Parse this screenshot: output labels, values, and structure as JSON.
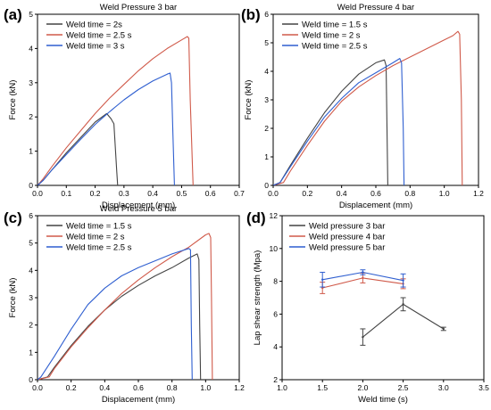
{
  "chart_data": [
    {
      "panel_label": "(a)",
      "type": "line",
      "title": "Weld Pressure 3 bar",
      "xlabel": "Displacement (mm)",
      "ylabel": "Force (kN)",
      "xlim": [
        0,
        0.7
      ],
      "ylim": [
        0,
        5
      ],
      "xticks": [
        "0.0",
        "0.1",
        "0.2",
        "0.3",
        "0.4",
        "0.5",
        "0.6",
        "0.7"
      ],
      "yticks": [
        "0",
        "1",
        "2",
        "3",
        "4",
        "5"
      ],
      "legend_position": "top-left",
      "grid": false,
      "series": [
        {
          "name": "Weld time = 2s",
          "color": "#444444",
          "x": [
            0,
            0.02,
            0.05,
            0.1,
            0.15,
            0.2,
            0.24,
            0.255,
            0.265,
            0.275,
            0.278
          ],
          "y": [
            0,
            0.15,
            0.45,
            0.95,
            1.4,
            1.85,
            2.1,
            1.95,
            1.8,
            0.4,
            0
          ]
        },
        {
          "name": "Weld time = 2.5 s",
          "color": "#d05a4a",
          "x": [
            0,
            0.02,
            0.05,
            0.1,
            0.15,
            0.2,
            0.25,
            0.3,
            0.35,
            0.4,
            0.45,
            0.5,
            0.52,
            0.525,
            0.53,
            0.54
          ],
          "y": [
            0,
            0.2,
            0.55,
            1.1,
            1.6,
            2.1,
            2.55,
            2.95,
            3.35,
            3.7,
            4.0,
            4.25,
            4.35,
            4.3,
            2.5,
            0
          ]
        },
        {
          "name": "Weld time = 3 s",
          "color": "#2f5fd0",
          "x": [
            0,
            0.02,
            0.05,
            0.1,
            0.15,
            0.2,
            0.25,
            0.3,
            0.35,
            0.4,
            0.45,
            0.46,
            0.465,
            0.47,
            0.475
          ],
          "y": [
            0,
            0.15,
            0.45,
            0.9,
            1.35,
            1.78,
            2.15,
            2.5,
            2.8,
            3.05,
            3.25,
            3.28,
            3.0,
            1.5,
            0
          ]
        }
      ]
    },
    {
      "panel_label": "(b)",
      "type": "line",
      "title": "Weld Pressure 4 bar",
      "xlabel": "Displacement (mm)",
      "ylabel": "Force (kN)",
      "xlim": [
        0,
        1.2
      ],
      "ylim": [
        0,
        6
      ],
      "xticks": [
        "0.0",
        "0.2",
        "0.4",
        "0.6",
        "0.8",
        "1.0",
        "1.2"
      ],
      "yticks": [
        "0",
        "1",
        "2",
        "3",
        "4",
        "5",
        "6"
      ],
      "legend_position": "top-left",
      "grid": false,
      "series": [
        {
          "name": "Weld time = 1.5 s",
          "color": "#444444",
          "x": [
            0,
            0.04,
            0.1,
            0.2,
            0.3,
            0.4,
            0.5,
            0.6,
            0.65,
            0.66,
            0.665,
            0.67
          ],
          "y": [
            0,
            0.1,
            0.7,
            1.65,
            2.55,
            3.3,
            3.9,
            4.3,
            4.4,
            4.2,
            2.0,
            0
          ]
        },
        {
          "name": "Weld time = 2 s",
          "color": "#d05a4a",
          "x": [
            0,
            0.06,
            0.1,
            0.2,
            0.3,
            0.4,
            0.5,
            0.6,
            0.7,
            0.8,
            0.9,
            1.0,
            1.05,
            1.08,
            1.09,
            1.1,
            1.105
          ],
          "y": [
            0,
            0.1,
            0.5,
            1.4,
            2.25,
            2.95,
            3.45,
            3.85,
            4.2,
            4.5,
            4.8,
            5.1,
            5.25,
            5.4,
            5.3,
            3.0,
            0
          ]
        },
        {
          "name": "Weld time = 2.5 s",
          "color": "#2f5fd0",
          "x": [
            0,
            0.04,
            0.1,
            0.2,
            0.3,
            0.4,
            0.5,
            0.6,
            0.7,
            0.74,
            0.75,
            0.76,
            0.765
          ],
          "y": [
            0,
            0.1,
            0.65,
            1.55,
            2.4,
            3.05,
            3.6,
            3.95,
            4.3,
            4.45,
            4.3,
            2.0,
            0
          ]
        }
      ]
    },
    {
      "panel_label": "(c)",
      "type": "line",
      "title": "Weld Pressure 5 bar",
      "xlabel": "Displacement (mm)",
      "ylabel": "Force (kN)",
      "xlim": [
        0,
        1.2
      ],
      "ylim": [
        0,
        6
      ],
      "xticks": [
        "0.0",
        "0.2",
        "0.4",
        "0.6",
        "0.8",
        "1.0",
        "1.2"
      ],
      "yticks": [
        "0",
        "1",
        "2",
        "3",
        "4",
        "5",
        "6"
      ],
      "legend_position": "top-left",
      "grid": false,
      "series": [
        {
          "name": "Weld time = 1.5 s",
          "color": "#444444",
          "x": [
            0,
            0.06,
            0.1,
            0.2,
            0.3,
            0.4,
            0.5,
            0.6,
            0.7,
            0.8,
            0.9,
            0.95,
            0.96,
            0.965,
            0.97
          ],
          "y": [
            0,
            0.1,
            0.45,
            1.25,
            1.95,
            2.55,
            3.05,
            3.45,
            3.8,
            4.1,
            4.45,
            4.6,
            4.4,
            2.0,
            0
          ]
        },
        {
          "name": "Weld time = 2 s",
          "color": "#d05a4a",
          "x": [
            0,
            0.07,
            0.1,
            0.2,
            0.3,
            0.4,
            0.5,
            0.6,
            0.7,
            0.8,
            0.9,
            1.0,
            1.02,
            1.03,
            1.035,
            1.04
          ],
          "y": [
            0,
            0.1,
            0.4,
            1.2,
            1.9,
            2.55,
            3.15,
            3.65,
            4.1,
            4.5,
            4.85,
            5.3,
            5.35,
            5.2,
            3.0,
            0
          ]
        },
        {
          "name": "Weld time = 2.5 s",
          "color": "#2f5fd0",
          "x": [
            0,
            0.02,
            0.1,
            0.2,
            0.3,
            0.4,
            0.5,
            0.6,
            0.7,
            0.8,
            0.9,
            0.91,
            0.915,
            0.92
          ],
          "y": [
            0,
            0.1,
            0.85,
            1.85,
            2.75,
            3.35,
            3.8,
            4.1,
            4.35,
            4.6,
            4.8,
            4.75,
            2.0,
            0
          ]
        }
      ]
    },
    {
      "panel_label": "(d)",
      "type": "line",
      "title": "",
      "xlabel": "Weld time (s)",
      "ylabel": "Lap shear strength (Mpa)",
      "xlim": [
        1.0,
        3.5
      ],
      "ylim": [
        2,
        12
      ],
      "xticks": [
        "1.0",
        "1.5",
        "2.0",
        "2.5",
        "3.0",
        "3.5"
      ],
      "yticks": [
        "2",
        "4",
        "6",
        "8",
        "10",
        "12"
      ],
      "legend_position": "top-left",
      "grid": false,
      "series": [
        {
          "name": "Weld pressure 3 bar",
          "color": "#444444",
          "x": [
            2.0,
            2.5,
            3.0
          ],
          "y": [
            4.6,
            6.6,
            5.1
          ],
          "err": [
            0.5,
            0.4,
            0.1
          ]
        },
        {
          "name": "Weld pressure 4 bar",
          "color": "#d05a4a",
          "x": [
            1.5,
            2.0,
            2.5
          ],
          "y": [
            7.6,
            8.2,
            7.85
          ],
          "err": [
            0.35,
            0.3,
            0.3
          ]
        },
        {
          "name": "Weld pressure 5 bar",
          "color": "#2f5fd0",
          "x": [
            1.5,
            2.0,
            2.5
          ],
          "y": [
            8.1,
            8.55,
            8.05
          ],
          "err": [
            0.45,
            0.15,
            0.4
          ]
        }
      ]
    }
  ]
}
